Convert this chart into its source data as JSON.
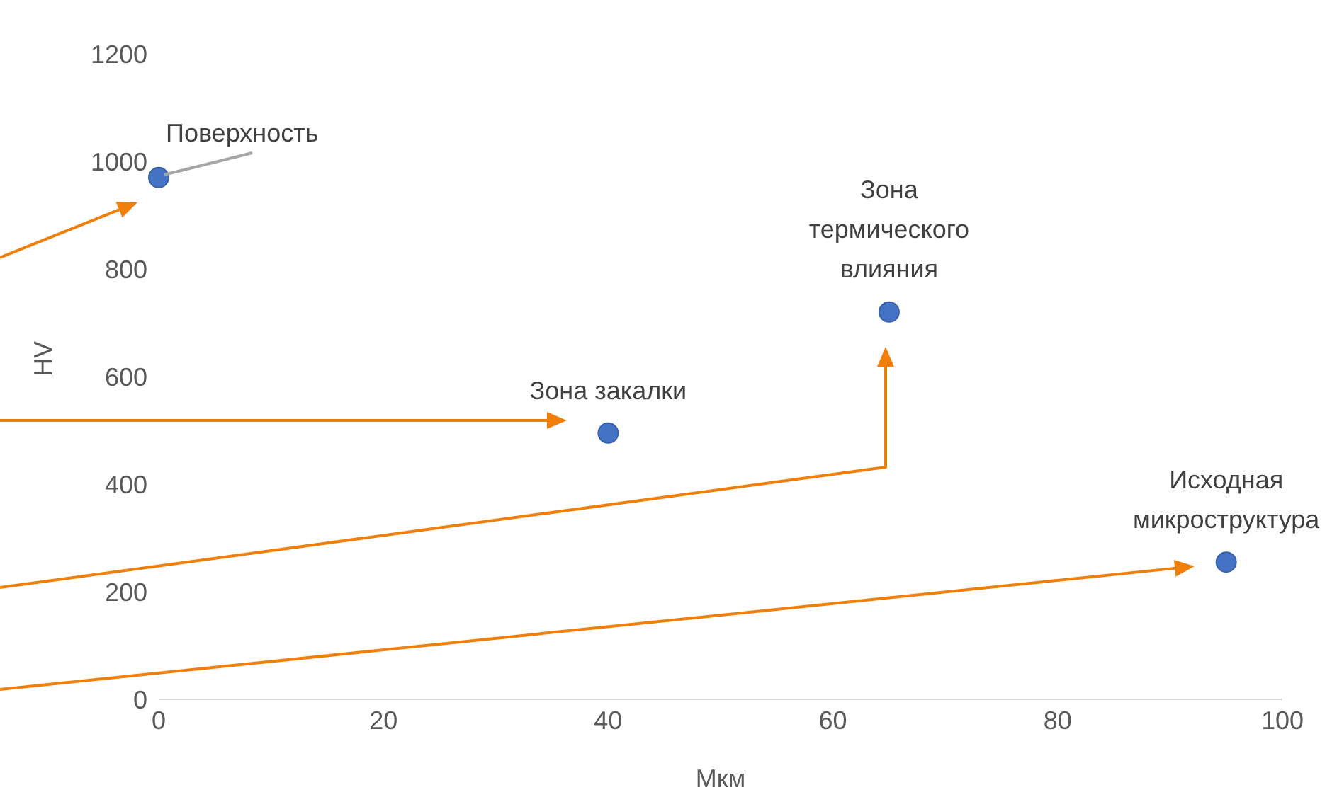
{
  "chart_data": {
    "type": "scatter",
    "xlabel": "Мкм",
    "ylabel": "HV",
    "x": [
      0,
      40,
      65,
      95
    ],
    "series": [
      {
        "color": "#4472c4",
        "values": [
          970,
          495,
          720,
          255
        ]
      }
    ],
    "xlim": [
      0,
      100
    ],
    "xticks": [
      0,
      20,
      40,
      60,
      80,
      100
    ],
    "ylim": [
      0,
      1200
    ],
    "yticks": [
      0,
      200,
      400,
      600,
      800,
      1000,
      1200
    ],
    "marker": "circle",
    "annotations": [
      {
        "text": "Поверхность",
        "x": 0,
        "y": 970
      },
      {
        "text": "Зона закалки",
        "x": 40,
        "y": 495
      },
      {
        "text": "Зона\nтермического\nвлияния",
        "x": 65,
        "y": 720
      },
      {
        "text": "Исходная\nмикроструктура",
        "x": 95,
        "y": 255
      }
    ]
  }
}
